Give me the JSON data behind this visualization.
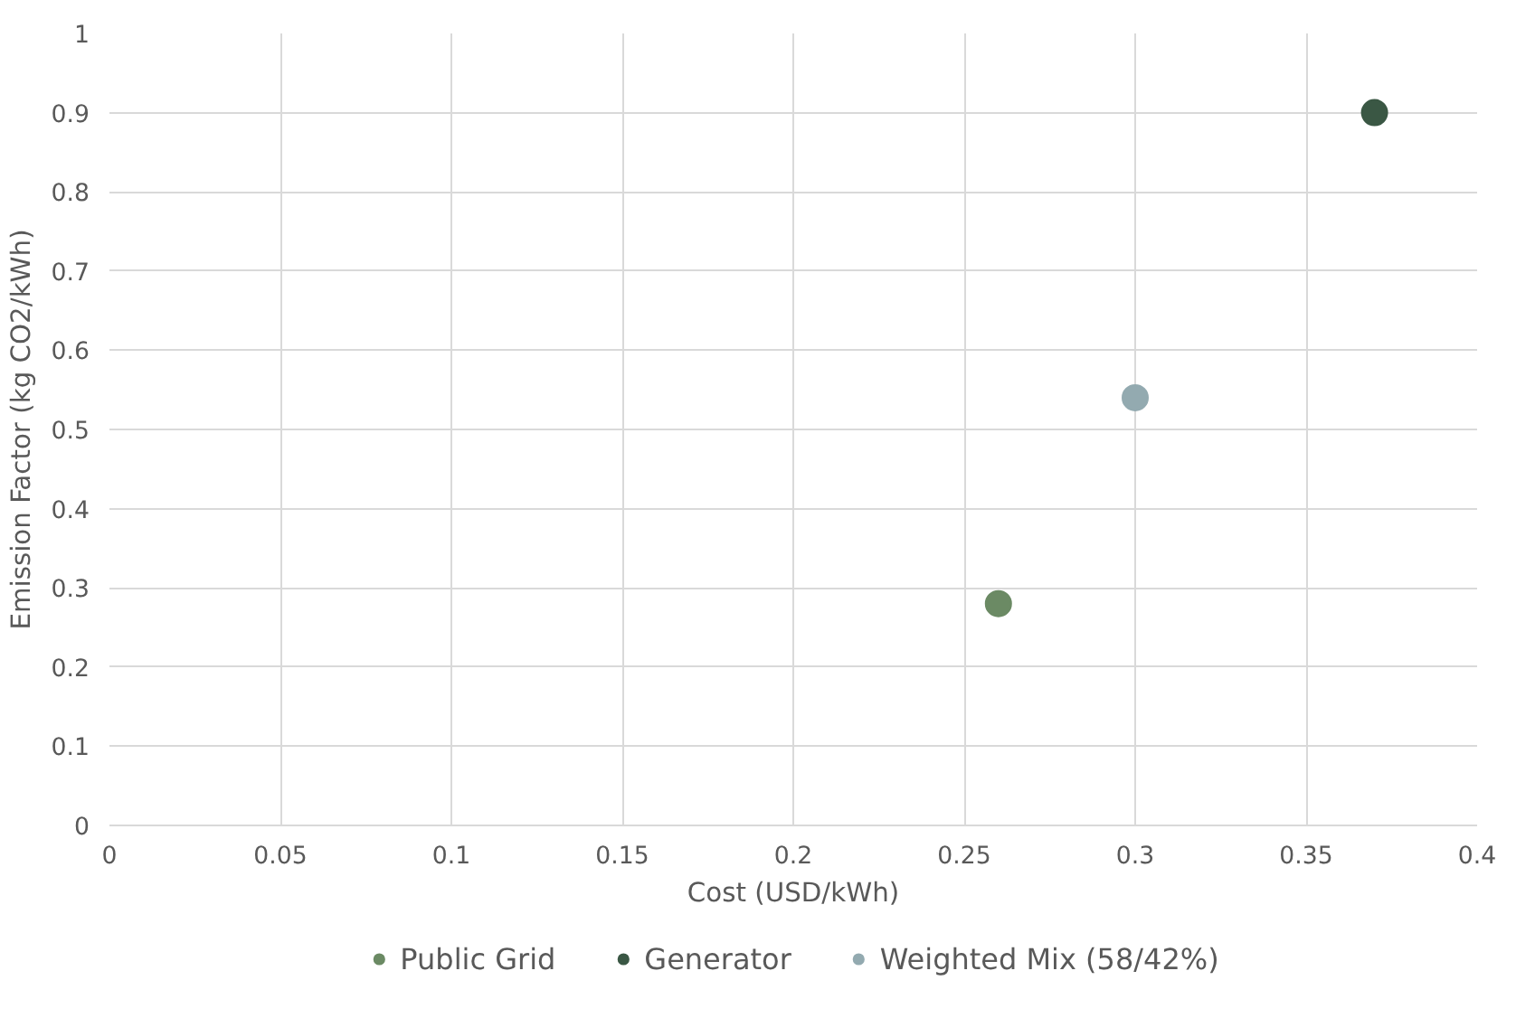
{
  "chart_data": {
    "type": "scatter",
    "xlabel": "Cost (USD/kWh)",
    "ylabel": "Emission Factor (kg CO2/kWh)",
    "series": [
      {
        "name": "Public Grid",
        "color": "#6b8a64",
        "x": [
          0.26
        ],
        "values": [
          0.28
        ]
      },
      {
        "name": "Generator",
        "color": "#3a5744",
        "x": [
          0.37
        ],
        "values": [
          0.9
        ]
      },
      {
        "name": "Weighted Mix (58/42%)",
        "color": "#93aab0",
        "x": [
          0.3
        ],
        "values": [
          0.54
        ]
      }
    ],
    "xlim": [
      0,
      0.4
    ],
    "xticks": [
      0,
      0.05,
      0.1,
      0.15,
      0.2,
      0.25,
      0.3,
      0.35,
      0.4
    ],
    "ylim": [
      0,
      1
    ],
    "yticks": [
      0,
      0.1,
      0.2,
      0.3,
      0.4,
      0.5,
      0.6,
      0.7,
      0.8,
      0.9,
      1
    ],
    "grid": true,
    "legend": "bottom",
    "marker": "circle"
  }
}
